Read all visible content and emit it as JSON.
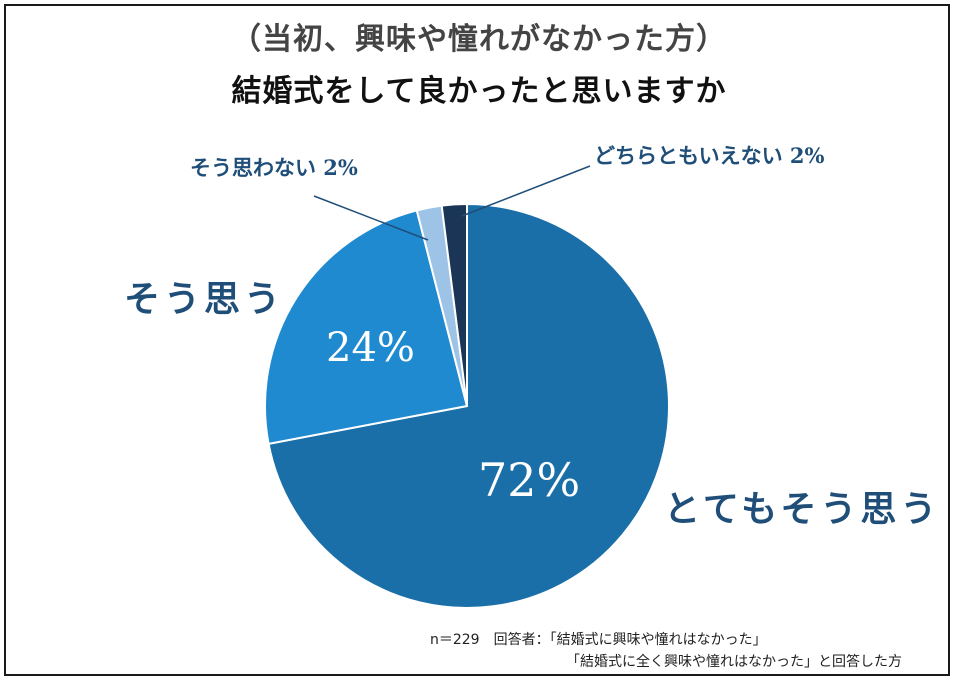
{
  "subtitle": "（当初、興味や憧れがなかった方）",
  "title": "結婚式をして良かったと思いますか",
  "chart_data": {
    "type": "pie",
    "title": "結婚式をして良かったと思いますか",
    "subtitle": "（当初、興味や憧れがなかった方）",
    "slices": [
      {
        "label": "とてもそう思う",
        "value": 72,
        "display": "72%",
        "color": "#1b6fa8"
      },
      {
        "label": "そう思う",
        "value": 24,
        "display": "24%",
        "color": "#1f8ad0"
      },
      {
        "label": "そう思わない",
        "value": 2,
        "display": "そう思わない 2%",
        "color": "#9dc3e6"
      },
      {
        "label": "どちらともいえない",
        "value": 2,
        "display": "どちらともいえない 2%",
        "color": "#1b3556"
      }
    ],
    "start_angle": "12 o'clock",
    "direction": "clockwise"
  },
  "labels": {
    "very": "とてもそう思う",
    "agree": "そう思う",
    "disagree": "そう思わない 2%",
    "neutral": "どちらともいえない 2%",
    "pct_very": "72%",
    "pct_agree": "24%"
  },
  "footnote": {
    "line1": "n＝229　回答者：「結婚式に興味や憧れはなかった」",
    "line2": "「結婚式に全く興味や憧れはなかった」と回答した方"
  }
}
